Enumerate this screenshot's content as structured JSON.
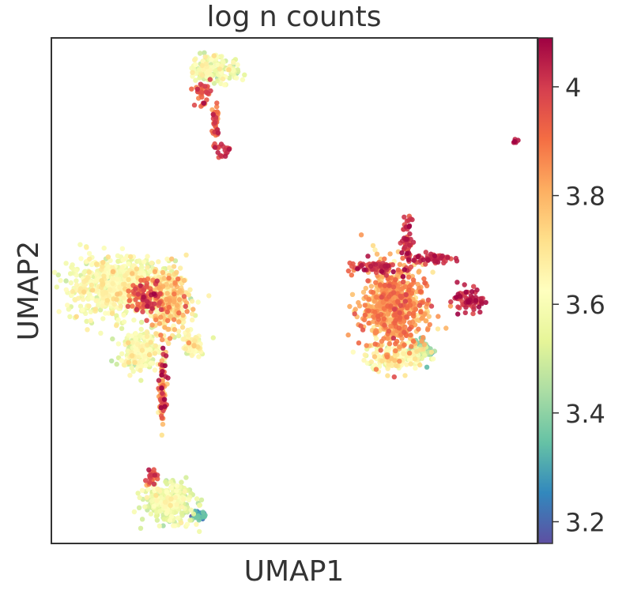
{
  "chart_data": {
    "type": "scatter",
    "title": "log n counts",
    "xlabel": "UMAP1",
    "ylabel": "UMAP2",
    "x_ticks": false,
    "y_ticks": false,
    "grid": false,
    "legend": "none",
    "colorbar": {
      "label": "",
      "range": [
        3.16,
        4.09
      ],
      "ticks": [
        3.2,
        3.4,
        3.6,
        3.8,
        4.0
      ],
      "tick_labels": [
        "3.2",
        "3.4",
        "3.6",
        "3.8",
        "4"
      ],
      "colormap": "Spectral_r",
      "colormap_stops": [
        "#5e4fa2",
        "#3288bd",
        "#66c2a5",
        "#abdda4",
        "#e6f598",
        "#ffffbf",
        "#fee08b",
        "#fdae61",
        "#f46d43",
        "#d53e4f",
        "#9e0142"
      ]
    },
    "clusters": [
      {
        "center": [
          -5.2,
          2.3
        ],
        "spread": [
          1.55,
          0.85
        ],
        "n": 700,
        "mean_value": 3.6,
        "value_sd": 0.06
      },
      {
        "center": [
          -3.3,
          1.8
        ],
        "spread": [
          0.75,
          1.0
        ],
        "n": 300,
        "mean_value": 3.7,
        "value_sd": 0.1
      },
      {
        "center": [
          -4.1,
          1.95
        ],
        "spread": [
          0.6,
          0.45
        ],
        "n": 90,
        "mean_value": 3.95,
        "value_sd": 0.06
      },
      {
        "center": [
          -4.3,
          0.2
        ],
        "spread": [
          0.6,
          0.6
        ],
        "n": 220,
        "mean_value": 3.58,
        "value_sd": 0.06
      },
      {
        "center": [
          -2.4,
          0.4
        ],
        "spread": [
          0.4,
          0.35
        ],
        "n": 70,
        "mean_value": 3.6,
        "value_sd": 0.07
      },
      {
        "center": [
          -3.5,
          -1.0
        ],
        "spread": [
          0.12,
          1.0
        ],
        "n": 90,
        "mean_value": 3.85,
        "value_sd": 0.12
      },
      {
        "center": [
          -3.3,
          -4.7
        ],
        "spread": [
          0.8,
          0.55
        ],
        "n": 320,
        "mean_value": 3.55,
        "value_sd": 0.06
      },
      {
        "center": [
          -3.9,
          -3.85
        ],
        "spread": [
          0.18,
          0.2
        ],
        "n": 25,
        "mean_value": 3.95,
        "value_sd": 0.05
      },
      {
        "center": [
          -2.2,
          -5.1
        ],
        "spread": [
          0.2,
          0.15
        ],
        "n": 25,
        "mean_value": 3.3,
        "value_sd": 0.06
      },
      {
        "center": [
          -1.6,
          9.3
        ],
        "spread": [
          0.85,
          0.4
        ],
        "n": 150,
        "mean_value": 3.58,
        "value_sd": 0.06
      },
      {
        "center": [
          -2.05,
          8.6
        ],
        "spread": [
          0.25,
          0.5
        ],
        "n": 35,
        "mean_value": 3.92,
        "value_sd": 0.08
      },
      {
        "center": [
          -1.6,
          7.55
        ],
        "spread": [
          0.12,
          0.5
        ],
        "n": 40,
        "mean_value": 3.95,
        "value_sd": 0.06
      },
      {
        "center": [
          -1.4,
          6.7
        ],
        "spread": [
          0.3,
          0.22
        ],
        "n": 20,
        "mean_value": 4.0,
        "value_sd": 0.04
      },
      {
        "center": [
          4.8,
          1.6
        ],
        "spread": [
          1.05,
          1.2
        ],
        "n": 650,
        "mean_value": 3.82,
        "value_sd": 0.07
      },
      {
        "center": [
          4.9,
          0.0
        ],
        "spread": [
          0.95,
          0.35
        ],
        "n": 160,
        "mean_value": 3.62,
        "value_sd": 0.07
      },
      {
        "center": [
          5.9,
          0.2
        ],
        "spread": [
          0.35,
          0.3
        ],
        "n": 60,
        "mean_value": 3.4,
        "value_sd": 0.07
      },
      {
        "center": [
          5.3,
          3.6
        ],
        "spread": [
          0.18,
          0.9
        ],
        "n": 60,
        "mean_value": 4.0,
        "value_sd": 0.05
      },
      {
        "center": [
          6.2,
          3.2
        ],
        "spread": [
          0.6,
          0.14
        ],
        "n": 50,
        "mean_value": 4.02,
        "value_sd": 0.04
      },
      {
        "center": [
          4.1,
          2.9
        ],
        "spread": [
          0.9,
          0.2
        ],
        "n": 60,
        "mean_value": 4.0,
        "value_sd": 0.05
      },
      {
        "center": [
          7.5,
          1.85
        ],
        "spread": [
          0.45,
          0.35
        ],
        "n": 70,
        "mean_value": 4.03,
        "value_sd": 0.04
      },
      {
        "center": [
          9.2,
          6.95
        ],
        "spread": [
          0.1,
          0.08
        ],
        "n": 6,
        "mean_value": 4.05,
        "value_sd": 0.02
      }
    ]
  }
}
